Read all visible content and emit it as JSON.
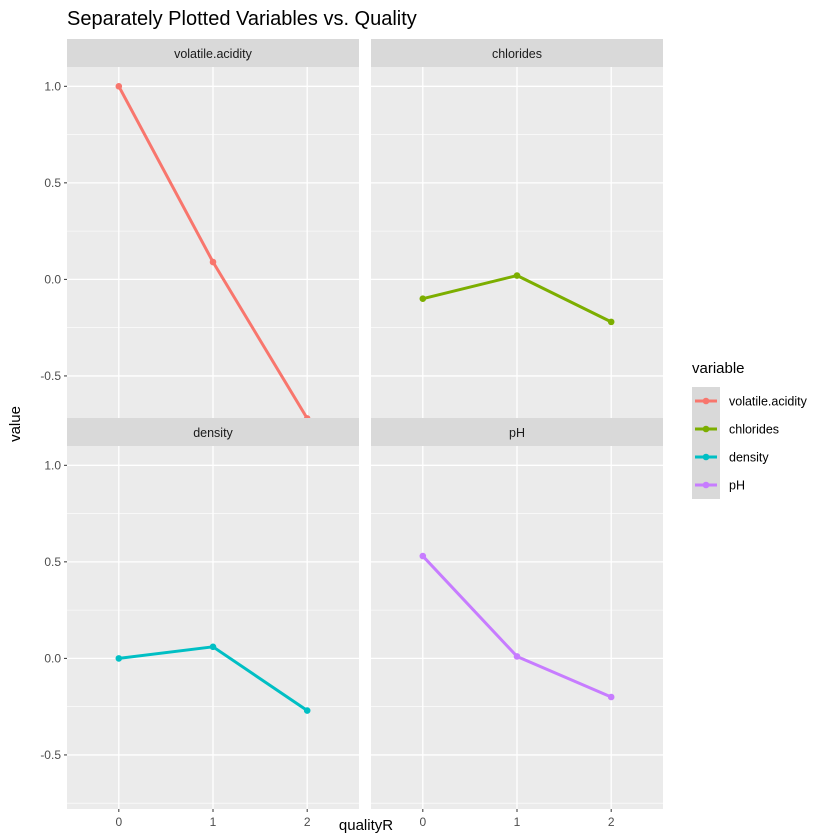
{
  "chart_data": {
    "type": "line",
    "title": "Separately Plotted Variables vs. Quality",
    "xlabel": "qualityR",
    "ylabel": "value",
    "x": [
      0,
      1,
      2
    ],
    "x_ticks": [
      "0",
      "1",
      "2"
    ],
    "y_ticks": [
      "-0.5",
      "0.0",
      "0.5",
      "1.0"
    ],
    "xlim": [
      -0.55,
      2.55
    ],
    "ylim": [
      -0.78,
      1.1
    ],
    "grid": true,
    "facets": [
      {
        "strip": "volatile.acidity",
        "series": "volatile.acidity",
        "values": [
          1.0,
          0.09,
          -0.72
        ]
      },
      {
        "strip": "chlorides",
        "series": "chlorides",
        "values": [
          -0.1,
          0.02,
          -0.22
        ]
      },
      {
        "strip": "density",
        "series": "density",
        "values": [
          0.0,
          0.06,
          -0.27
        ]
      },
      {
        "strip": "pH",
        "series": "pH",
        "values": [
          0.53,
          0.01,
          -0.2
        ]
      }
    ],
    "legend": {
      "title": "variable",
      "position": "right",
      "items": [
        {
          "label": "volatile.acidity",
          "color": "#F8766D"
        },
        {
          "label": "chlorides",
          "color": "#7CAE00"
        },
        {
          "label": "density",
          "color": "#00BFC4"
        },
        {
          "label": "pH",
          "color": "#C77CFF"
        }
      ]
    }
  }
}
